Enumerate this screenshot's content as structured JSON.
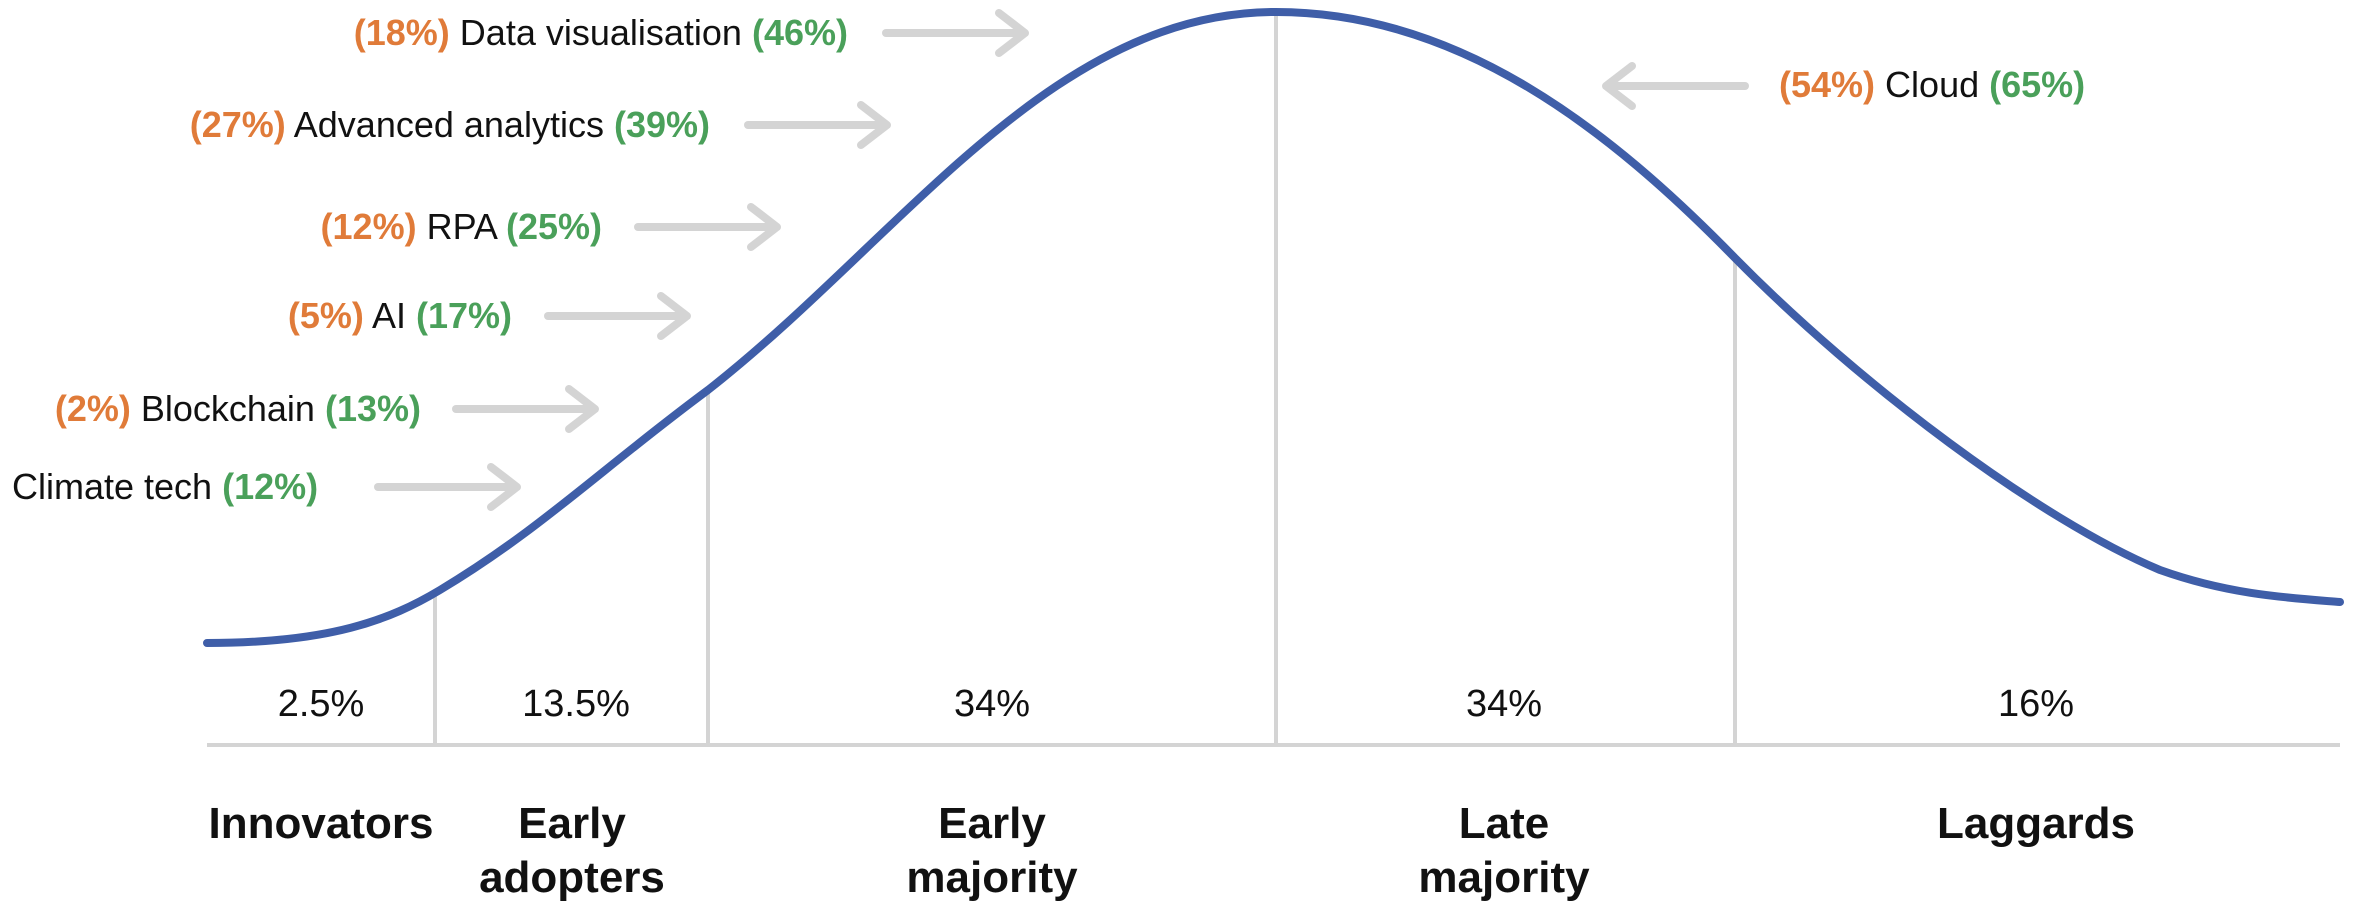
{
  "colors": {
    "curve": "#3f5ea8",
    "divider": "#d4d4d4",
    "arrow": "#d4d4d4",
    "baseline": "#d4d4d4",
    "pct_before": "#e07b39",
    "pct_after": "#4aa05a",
    "text": "#111111"
  },
  "technologies": [
    {
      "id": "data-visualisation",
      "before": "(18%)",
      "name": "Data visualisation",
      "after": "(46%)",
      "arrow_direction": "right"
    },
    {
      "id": "advanced-analytics",
      "before": "(27%)",
      "name": "Advanced analytics",
      "after": "(39%)",
      "arrow_direction": "right"
    },
    {
      "id": "rpa",
      "before": "(12%)",
      "name": "RPA",
      "after": "(25%)",
      "arrow_direction": "right"
    },
    {
      "id": "ai",
      "before": "(5%)",
      "name": "AI",
      "after": "(17%)",
      "arrow_direction": "right"
    },
    {
      "id": "blockchain",
      "before": "(2%)",
      "name": "Blockchain",
      "after": "(13%)",
      "arrow_direction": "right"
    },
    {
      "id": "climate-tech",
      "before": "",
      "name": "Climate tech",
      "after": "(12%)",
      "arrow_direction": "right"
    },
    {
      "id": "cloud",
      "before": "(54%)",
      "name": "Cloud",
      "after": "(65%)",
      "arrow_direction": "left"
    }
  ],
  "segments": [
    {
      "id": "innovators",
      "percent": "2.5%",
      "name_lines": [
        "Innovators"
      ]
    },
    {
      "id": "early-adopters",
      "percent": "13.5%",
      "name_lines": [
        "Early",
        "adopters"
      ]
    },
    {
      "id": "early-majority",
      "percent": "34%",
      "name_lines": [
        "Early",
        "majority"
      ]
    },
    {
      "id": "late-majority",
      "percent": "34%",
      "name_lines": [
        "Late",
        "majority"
      ]
    },
    {
      "id": "laggards",
      "percent": "16%",
      "name_lines": [
        "Laggards"
      ]
    }
  ]
}
